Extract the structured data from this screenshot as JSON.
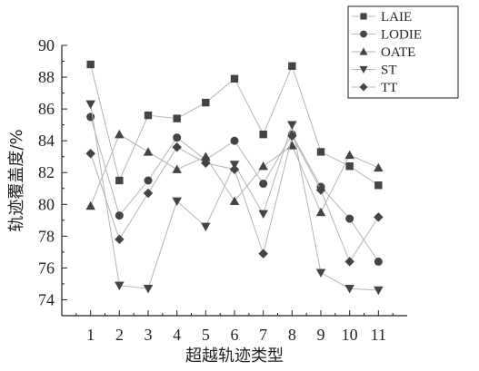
{
  "chart_data": {
    "type": "line",
    "title": "",
    "xlabel": "超越轨迹类型",
    "ylabel": "轨迹覆盖度/%",
    "x": [
      1,
      2,
      3,
      4,
      5,
      6,
      7,
      8,
      9,
      10,
      11
    ],
    "xlim": [
      0,
      12
    ],
    "ylim": [
      73,
      90
    ],
    "yticks": [
      74,
      76,
      78,
      80,
      82,
      84,
      86,
      88,
      90
    ],
    "grid": false,
    "legend_position": "top-right",
    "line_color": "#b5b5b5",
    "marker_color": "#444444",
    "series": [
      {
        "name": "LAIE",
        "marker": "square",
        "values": [
          88.8,
          81.5,
          85.6,
          85.4,
          86.4,
          87.9,
          84.4,
          88.7,
          83.3,
          82.4,
          81.2
        ]
      },
      {
        "name": "LODIE",
        "marker": "circle",
        "values": [
          85.5,
          79.3,
          81.5,
          84.2,
          82.8,
          84.0,
          81.3,
          84.4,
          81.1,
          79.1,
          76.4
        ]
      },
      {
        "name": "OATE",
        "marker": "triangle-up",
        "values": [
          79.9,
          84.4,
          83.3,
          82.2,
          83.0,
          80.2,
          82.4,
          83.7,
          79.5,
          83.1,
          82.3
        ]
      },
      {
        "name": "ST",
        "marker": "triangle-down",
        "values": [
          86.3,
          74.9,
          74.7,
          80.2,
          78.6,
          82.5,
          79.4,
          85.0,
          75.7,
          74.7,
          74.6
        ]
      },
      {
        "name": "TT",
        "marker": "diamond",
        "values": [
          83.2,
          77.8,
          80.7,
          83.6,
          82.6,
          82.2,
          76.9,
          84.3,
          80.9,
          76.4,
          79.2
        ]
      }
    ]
  }
}
